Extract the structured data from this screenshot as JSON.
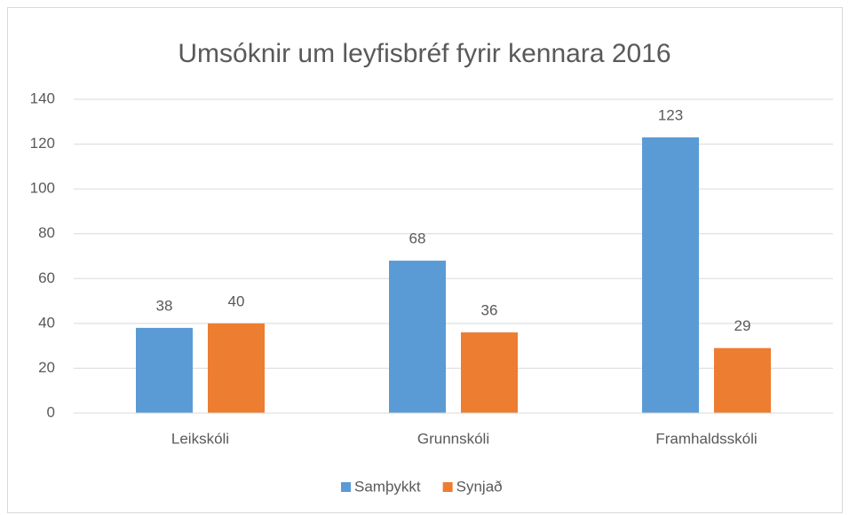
{
  "chart_data": {
    "type": "bar",
    "title": "Umsóknir um leyfisbréf fyrir kennara 2016",
    "categories": [
      "Leikskóli",
      "Grunnskóli",
      "Framhaldsskóli"
    ],
    "series": [
      {
        "name": "Samþykkt",
        "color": "#5b9bd5",
        "values": [
          38,
          68,
          123
        ]
      },
      {
        "name": "Synjað",
        "color": "#ed7d31",
        "values": [
          40,
          36,
          29
        ]
      }
    ],
    "ylim": [
      0,
      140
    ],
    "yticks": [
      0,
      20,
      40,
      60,
      80,
      100,
      120,
      140
    ],
    "grid": true,
    "legend": "bottom"
  }
}
